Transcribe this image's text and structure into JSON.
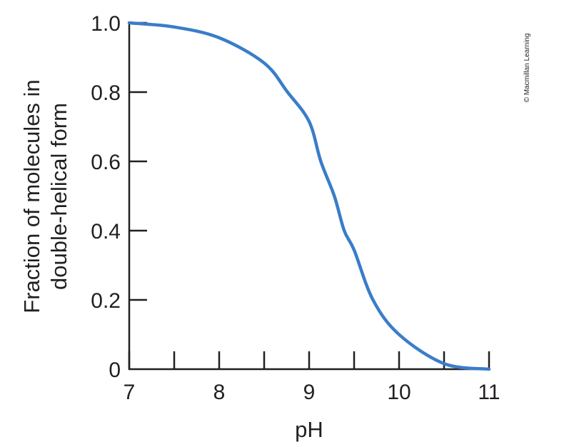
{
  "chart_data": {
    "type": "line",
    "title": "",
    "xlabel": "pH",
    "ylabel_lines": [
      "Fraction of molecules in",
      "double-helical form"
    ],
    "xlim": [
      7,
      11
    ],
    "ylim": [
      0,
      1.0
    ],
    "x_ticks": [
      7,
      7.5,
      8,
      8.5,
      9,
      9.5,
      10,
      10.5,
      11
    ],
    "x_tick_labels": [
      {
        "value": 7,
        "label": "7"
      },
      {
        "value": 8,
        "label": "8"
      },
      {
        "value": 9,
        "label": "9"
      },
      {
        "value": 10,
        "label": "10"
      },
      {
        "value": 11,
        "label": "11"
      }
    ],
    "y_tick_labels": [
      {
        "value": 0,
        "label": "0"
      },
      {
        "value": 0.2,
        "label": "0.2"
      },
      {
        "value": 0.4,
        "label": "0.4"
      },
      {
        "value": 0.6,
        "label": "0.6"
      },
      {
        "value": 0.8,
        "label": "0.8"
      },
      {
        "value": 1.0,
        "label": "1.0"
      }
    ],
    "grid": false,
    "series": [
      {
        "color": "#3a7dc9",
        "x": [
          7,
          7.5,
          8,
          8.5,
          8.76,
          9,
          9.13,
          9.28,
          9.39,
          9.5,
          9.71,
          10,
          10.5,
          11
        ],
        "y": [
          1.0,
          0.988,
          0.957,
          0.884,
          0.8,
          0.715,
          0.6,
          0.5,
          0.4,
          0.344,
          0.2,
          0.1,
          0.016,
          0.0
        ]
      }
    ]
  },
  "credit": "© Macmillan Learning"
}
